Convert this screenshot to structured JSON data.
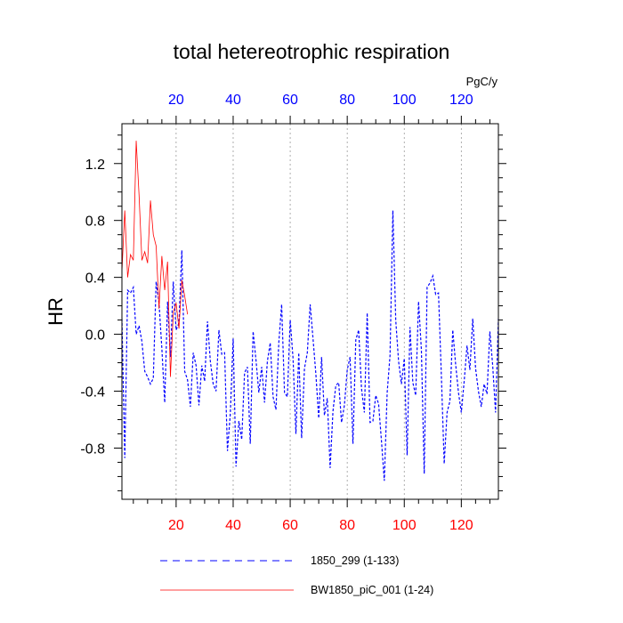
{
  "chart_data": {
    "type": "line",
    "title": "total hetereotrophic respiration",
    "ylabel": "HR",
    "units": "PgC/y",
    "xlim": [
      1,
      133
    ],
    "ylim": [
      -1.16,
      1.48
    ],
    "x_ticks": [
      20,
      40,
      60,
      80,
      100,
      120
    ],
    "y_ticks": [
      -0.8,
      -0.4,
      0.0,
      0.4,
      0.8,
      1.2
    ],
    "y_tick_labels": [
      "-0.8",
      "-0.4",
      "0.0",
      "0.4",
      "0.8",
      "1.2"
    ],
    "bottom_axis_color": "#ff0000",
    "top_axis_color": "#0000ff",
    "grid": "vertical dotted at x ticks",
    "series": [
      {
        "name": "1850_299 (1-133)",
        "color": "#0000ff",
        "dash": "dashed",
        "x_start": 1,
        "values": [
          0.11,
          -0.87,
          0.31,
          0.29,
          0.33,
          0.0,
          0.06,
          -0.05,
          -0.26,
          -0.3,
          -0.35,
          -0.31,
          0.37,
          0.22,
          -0.1,
          -0.48,
          0.23,
          -0.16,
          0.37,
          0.03,
          0.08,
          0.59,
          -0.26,
          -0.32,
          -0.51,
          -0.13,
          -0.22,
          -0.5,
          -0.22,
          -0.33,
          0.09,
          -0.19,
          -0.35,
          -0.4,
          0.03,
          -0.14,
          -0.13,
          -0.82,
          -0.56,
          -0.03,
          -0.93,
          -0.61,
          -0.74,
          -0.27,
          -0.23,
          -0.77,
          0.02,
          -0.18,
          -0.41,
          -0.23,
          -0.48,
          -0.19,
          -0.06,
          -0.44,
          -0.53,
          -0.06,
          0.21,
          -0.41,
          -0.44,
          0.1,
          -0.17,
          -0.7,
          -0.13,
          -0.73,
          -0.24,
          -0.13,
          0.21,
          -0.03,
          -0.28,
          -0.59,
          -0.16,
          -0.57,
          -0.45,
          -0.94,
          -0.54,
          -0.36,
          -0.34,
          -0.62,
          -0.5,
          -0.25,
          -0.16,
          -0.77,
          -0.04,
          0.03,
          -0.38,
          -0.55,
          0.15,
          -0.62,
          -0.61,
          -0.43,
          -0.49,
          -0.75,
          -1.03,
          -0.41,
          -0.15,
          0.87,
          0.1,
          -0.19,
          -0.35,
          -0.17,
          -0.85,
          0.05,
          -0.34,
          -0.43,
          0.23,
          -0.11,
          -0.98,
          0.33,
          0.36,
          0.41,
          0.28,
          0.29,
          -0.29,
          -0.91,
          -0.55,
          -0.47,
          0.03,
          -0.21,
          -0.41,
          -0.55,
          -0.33,
          -0.08,
          -0.25,
          0.11,
          -0.24,
          -0.4,
          -0.51,
          -0.35,
          -0.42,
          0.02,
          -0.22,
          -0.55,
          0.11
        ]
      },
      {
        "name": "BW1850_piC_001 (1-24)",
        "color": "#ff0000",
        "dash": "solid",
        "x_start": 1,
        "values": [
          0.44,
          0.87,
          0.4,
          0.56,
          0.52,
          1.36,
          0.98,
          0.52,
          0.58,
          0.5,
          0.94,
          0.7,
          0.62,
          0.18,
          0.55,
          0.31,
          0.51,
          -0.3,
          0.15,
          0.22,
          0.04,
          0.38,
          0.27,
          0.14
        ]
      }
    ]
  }
}
